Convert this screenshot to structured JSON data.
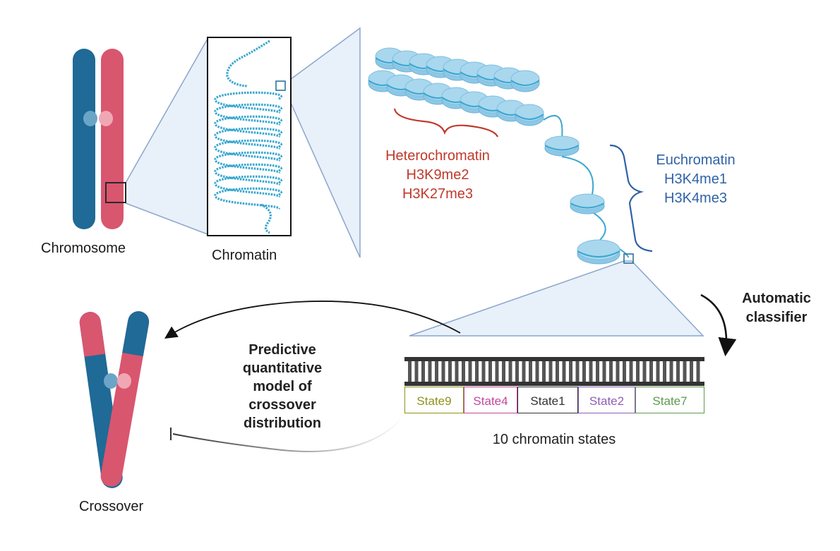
{
  "labels": {
    "chromosome": "Chromosome",
    "chromatin": "Chromatin",
    "crossover": "Crossover",
    "heterochromatin": [
      "Heterochromatin",
      "H3K9me2",
      "H3K27me3"
    ],
    "euchromatin": [
      "Euchromatin",
      "H3K4me1",
      "H3K4me3"
    ],
    "automatic_classifier": [
      "Automatic",
      "classifier"
    ],
    "predictive_model": [
      "Predictive",
      "quantitative",
      "model of",
      "crossover",
      "distribution"
    ],
    "states_caption": "10 chromatin states"
  },
  "states": [
    {
      "name": "State9",
      "color": "#8c9418"
    },
    {
      "name": "State4",
      "color": "#c2499b"
    },
    {
      "name": "State1",
      "color": "#333333"
    },
    {
      "name": "State2",
      "color": "#8e5fb8"
    },
    {
      "name": "State7",
      "color": "#5d9a4e"
    }
  ],
  "colors": {
    "chromosome_blue": "#1f6a96",
    "chromosome_pink": "#d9566f",
    "chromatin_fiber": "#3aa7cf",
    "nucleosome": "#a9d7ee",
    "zoom_fill": "#e8f0fa",
    "heterochromatin": "#c0392b",
    "euchromatin": "#2f62a8"
  }
}
